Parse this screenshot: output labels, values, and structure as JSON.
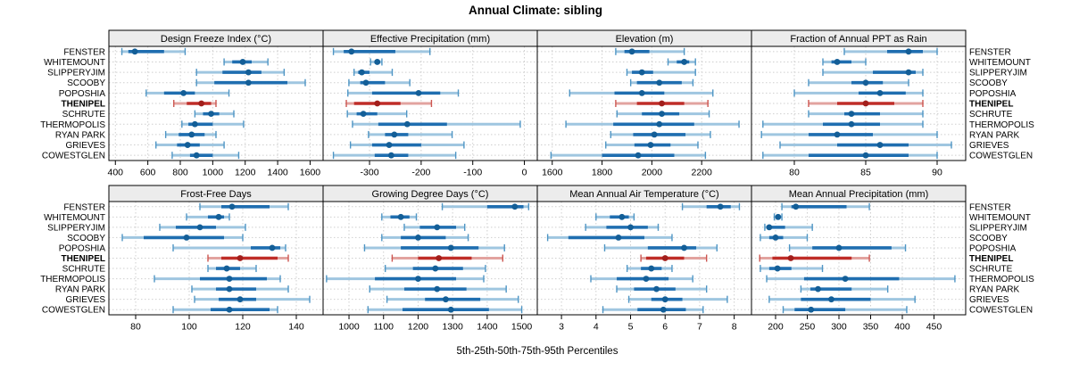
{
  "title": "Annual Climate: sibling",
  "caption": "5th-25th-50th-75th-95th Percentiles",
  "highlight_site": "THENIPEL",
  "sites": [
    "FENSTER",
    "WHITEMOUNT",
    "SLIPPERYJIM",
    "SCOOBY",
    "POPOSHIA",
    "THENIPEL",
    "SCHRUTE",
    "THERMOPOLIS",
    "RYAN PARK",
    "GRIEVES",
    "COWESTGLEN"
  ],
  "colors": {
    "normal": {
      "band": "#9fc6e0",
      "cap": "#4e95c4",
      "line": "#1f6eb0",
      "dot": "#135e97"
    },
    "highlight": {
      "band": "#e2a39f",
      "cap": "#cc5550",
      "line": "#bf2d28",
      "dot": "#a21f1c"
    },
    "grid": "#cfcfcf",
    "strip_bg": "#ececec",
    "border": "#000000"
  },
  "chart_data": {
    "type": "dot-interval-trellis",
    "percentiles": [
      "5th",
      "25th",
      "50th",
      "75th",
      "95th"
    ],
    "layout": "2 rows x 4 columns, shared site category axis, axes below each row",
    "panels": [
      {
        "title": "Design Freeze Index (°C)",
        "xlim": [
          360,
          1680
        ],
        "ticks": [
          400,
          600,
          800,
          1000,
          1200,
          1400,
          1600
        ],
        "series": [
          [
            440,
            480,
            520,
            700,
            830
          ],
          [
            1070,
            1120,
            1185,
            1240,
            1340
          ],
          [
            900,
            1060,
            1220,
            1300,
            1440
          ],
          [
            900,
            1010,
            1220,
            1460,
            1570
          ],
          [
            590,
            700,
            820,
            890,
            1100
          ],
          [
            760,
            840,
            930,
            990,
            1020
          ],
          [
            890,
            940,
            990,
            1040,
            1130
          ],
          [
            810,
            850,
            890,
            1000,
            1190
          ],
          [
            710,
            790,
            870,
            950,
            1020
          ],
          [
            650,
            780,
            845,
            920,
            1070
          ],
          [
            750,
            860,
            900,
            1000,
            1160
          ]
        ]
      },
      {
        "title": "Effective Precipitation (mm)",
        "xlim": [
          -390,
          25
        ],
        "ticks": [
          -300,
          -200,
          -100,
          0
        ],
        "series": [
          [
            -370,
            -350,
            -335,
            -250,
            -183
          ],
          [
            -298,
            -290,
            -285,
            -280,
            -276
          ],
          [
            -330,
            -322,
            -315,
            -300,
            -256
          ],
          [
            -340,
            -318,
            -307,
            -270,
            -222
          ],
          [
            -342,
            -295,
            -205,
            -163,
            -128
          ],
          [
            -345,
            -330,
            -285,
            -240,
            -180
          ],
          [
            -343,
            -325,
            -312,
            -285,
            -228
          ],
          [
            -333,
            -283,
            -227,
            -150,
            -8
          ],
          [
            -302,
            -270,
            -252,
            -225,
            -140
          ],
          [
            -337,
            -295,
            -262,
            -200,
            -117
          ],
          [
            -370,
            -290,
            -258,
            -225,
            -133
          ]
        ]
      },
      {
        "title": "Elevation (m)",
        "xlim": [
          1540,
          2400
        ],
        "ticks": [
          1600,
          1800,
          2000,
          2200
        ],
        "series": [
          [
            1855,
            1890,
            1920,
            1990,
            2130
          ],
          [
            2065,
            2100,
            2130,
            2150,
            2175
          ],
          [
            1900,
            1920,
            1960,
            2005,
            2175
          ],
          [
            1915,
            1940,
            2030,
            2120,
            2165
          ],
          [
            1670,
            1850,
            1960,
            2050,
            2245
          ],
          [
            1855,
            1940,
            2040,
            2130,
            2225
          ],
          [
            1860,
            1960,
            2040,
            2110,
            2230
          ],
          [
            1655,
            1845,
            2030,
            2170,
            2350
          ],
          [
            1835,
            1925,
            2010,
            2135,
            2235
          ],
          [
            1815,
            1930,
            1995,
            2075,
            2185
          ],
          [
            1595,
            1800,
            1945,
            2090,
            2215
          ]
        ]
      },
      {
        "title": "Fraction of Annual PPT as Rain",
        "xlim": [
          77,
          92
        ],
        "ticks": [
          80,
          85,
          90
        ],
        "series": [
          [
            83.5,
            86.5,
            88,
            89,
            90
          ],
          [
            82,
            82.6,
            83,
            84,
            85
          ],
          [
            82,
            85.5,
            88,
            88.5,
            89
          ],
          [
            81,
            84,
            85,
            86.2,
            88
          ],
          [
            80,
            84.5,
            86,
            87.8,
            89
          ],
          [
            81,
            83,
            85,
            87,
            89
          ],
          [
            81,
            83.5,
            84,
            86,
            89
          ],
          [
            77.8,
            82,
            84,
            86,
            89
          ],
          [
            77.7,
            81,
            83,
            85.5,
            90
          ],
          [
            79,
            83,
            86,
            88,
            91
          ],
          [
            77.8,
            81,
            85,
            88,
            90
          ]
        ]
      },
      {
        "title": "Frost-Free Days",
        "xlim": [
          70,
          150
        ],
        "ticks": [
          80,
          100,
          120,
          140
        ],
        "series": [
          [
            104,
            112,
            116,
            130,
            137
          ],
          [
            99,
            107,
            111,
            113,
            115
          ],
          [
            89,
            95,
            104,
            110,
            121
          ],
          [
            75,
            83,
            99,
            113,
            120
          ],
          [
            94,
            123,
            131,
            134,
            136
          ],
          [
            107,
            112,
            119,
            133,
            137
          ],
          [
            107,
            110,
            114,
            119,
            125
          ],
          [
            87,
            104,
            115,
            129,
            134
          ],
          [
            101,
            110,
            115,
            125,
            137
          ],
          [
            102,
            111,
            119,
            125,
            145
          ],
          [
            94,
            108,
            115,
            130,
            133
          ]
        ]
      },
      {
        "title": "Growing Degree Days (°C)",
        "xlim": [
          925,
          1545
        ],
        "ticks": [
          1000,
          1100,
          1200,
          1300,
          1400,
          1500
        ],
        "series": [
          [
            1270,
            1400,
            1480,
            1505,
            1520
          ],
          [
            1095,
            1120,
            1150,
            1175,
            1195
          ],
          [
            1160,
            1205,
            1255,
            1310,
            1335
          ],
          [
            1095,
            1150,
            1200,
            1280,
            1345
          ],
          [
            1045,
            1150,
            1295,
            1375,
            1450
          ],
          [
            1125,
            1200,
            1260,
            1355,
            1445
          ],
          [
            1105,
            1185,
            1250,
            1330,
            1395
          ],
          [
            935,
            1075,
            1200,
            1310,
            1390
          ],
          [
            1060,
            1160,
            1255,
            1340,
            1455
          ],
          [
            1110,
            1220,
            1280,
            1380,
            1490
          ],
          [
            1055,
            1155,
            1295,
            1405,
            1500
          ]
        ]
      },
      {
        "title": "Mean Annual Air Temperature (°C)",
        "xlim": [
          2.3,
          8.5
        ],
        "ticks": [
          3,
          4,
          5,
          6,
          7,
          8
        ],
        "series": [
          [
            6.5,
            7.2,
            7.6,
            7.9,
            8.15
          ],
          [
            4.0,
            4.4,
            4.75,
            4.95,
            5.1
          ],
          [
            3.7,
            4.3,
            5.0,
            5.5,
            5.8
          ],
          [
            2.6,
            3.2,
            4.65,
            5.4,
            6.2
          ],
          [
            4.25,
            5.5,
            6.55,
            6.9,
            7.5
          ],
          [
            5.3,
            5.45,
            6.0,
            6.55,
            7.2
          ],
          [
            4.9,
            5.3,
            5.6,
            5.9,
            6.2
          ],
          [
            3.85,
            4.6,
            5.45,
            6.1,
            6.8
          ],
          [
            4.6,
            5.1,
            5.75,
            6.3,
            7.2
          ],
          [
            4.95,
            5.6,
            6.0,
            6.5,
            7.8
          ],
          [
            4.2,
            5.2,
            5.95,
            6.6,
            7.1
          ]
        ]
      },
      {
        "title": "Mean Annual Precipitation (mm)",
        "xlim": [
          162,
          500
        ],
        "ticks": [
          200,
          250,
          300,
          350,
          400,
          450
        ],
        "series": [
          [
            210,
            225,
            232,
            312,
            348
          ],
          [
            198,
            201,
            204,
            207,
            210
          ],
          [
            183,
            186,
            190,
            215,
            258
          ],
          [
            176,
            190,
            200,
            212,
            250
          ],
          [
            222,
            258,
            300,
            383,
            405
          ],
          [
            175,
            195,
            224,
            320,
            348
          ],
          [
            176,
            190,
            203,
            225,
            274
          ],
          [
            186,
            245,
            310,
            395,
            483
          ],
          [
            240,
            255,
            267,
            320,
            377
          ],
          [
            190,
            240,
            288,
            350,
            420
          ],
          [
            212,
            230,
            256,
            310,
            407
          ]
        ]
      }
    ]
  }
}
